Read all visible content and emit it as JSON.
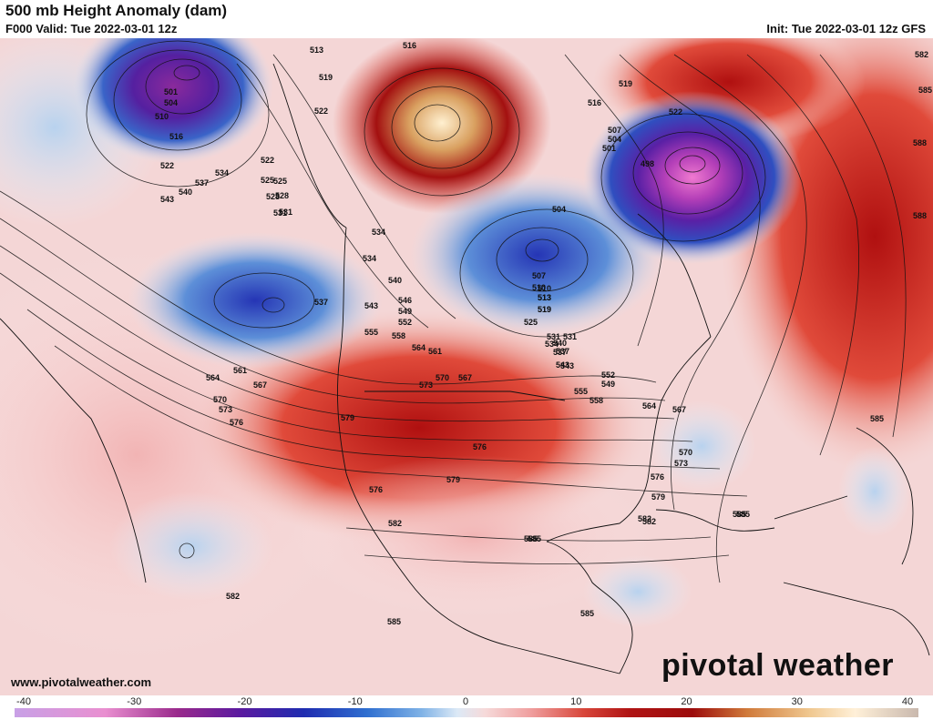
{
  "header": {
    "title": "500 mb Height Anomaly (dam)",
    "valid": "F000 Valid: Tue 2022-03-01 12z",
    "init": "Init: Tue 2022-03-01 12z GFS"
  },
  "footer": {
    "website": "www.pivotalweather.com",
    "brand": "pivotal weather"
  },
  "colorbar": {
    "ticks": [
      "-40",
      "-30",
      "-20",
      "-10",
      "0",
      "10",
      "20",
      "30",
      "40"
    ]
  },
  "contour_labels": [
    {
      "t": "513"
    },
    {
      "t": "516"
    },
    {
      "t": "522"
    },
    {
      "t": "525"
    },
    {
      "t": "528"
    },
    {
      "t": "531"
    },
    {
      "t": "534"
    },
    {
      "t": "519"
    },
    {
      "t": "501"
    },
    {
      "t": "504"
    },
    {
      "t": "510"
    },
    {
      "t": "516"
    },
    {
      "t": "522"
    },
    {
      "t": "534"
    },
    {
      "t": "537"
    },
    {
      "t": "540"
    },
    {
      "t": "543"
    },
    {
      "t": "522"
    },
    {
      "t": "525"
    },
    {
      "t": "528"
    },
    {
      "t": "531"
    },
    {
      "t": "534"
    },
    {
      "t": "540"
    },
    {
      "t": "537"
    },
    {
      "t": "543"
    },
    {
      "t": "546"
    },
    {
      "t": "549"
    },
    {
      "t": "552"
    },
    {
      "t": "555"
    },
    {
      "t": "558"
    },
    {
      "t": "564"
    },
    {
      "t": "561"
    },
    {
      "t": "570"
    },
    {
      "t": "567"
    },
    {
      "t": "573"
    },
    {
      "t": "564"
    },
    {
      "t": "561"
    },
    {
      "t": "567"
    },
    {
      "t": "570"
    },
    {
      "t": "573"
    },
    {
      "t": "576"
    },
    {
      "t": "579"
    },
    {
      "t": "576"
    },
    {
      "t": "579"
    },
    {
      "t": "576"
    },
    {
      "t": "582"
    },
    {
      "t": "582"
    },
    {
      "t": "585"
    },
    {
      "t": "585"
    },
    {
      "t": "585"
    },
    {
      "t": "543"
    },
    {
      "t": "540"
    },
    {
      "t": "537"
    },
    {
      "t": "531"
    },
    {
      "t": "519"
    },
    {
      "t": "513"
    },
    {
      "t": "510"
    },
    {
      "t": "504"
    },
    {
      "t": "507"
    },
    {
      "t": "510"
    },
    {
      "t": "513"
    },
    {
      "t": "519"
    },
    {
      "t": "525"
    },
    {
      "t": "531"
    },
    {
      "t": "534"
    },
    {
      "t": "537"
    },
    {
      "t": "543"
    },
    {
      "t": "549"
    },
    {
      "t": "552"
    },
    {
      "t": "555"
    },
    {
      "t": "558"
    },
    {
      "t": "564"
    },
    {
      "t": "567"
    },
    {
      "t": "570"
    },
    {
      "t": "573"
    },
    {
      "t": "576"
    },
    {
      "t": "579"
    },
    {
      "t": "582"
    },
    {
      "t": "585"
    },
    {
      "t": "498"
    },
    {
      "t": "501"
    },
    {
      "t": "504"
    },
    {
      "t": "507"
    },
    {
      "t": "516"
    },
    {
      "t": "519"
    },
    {
      "t": "522"
    },
    {
      "t": "582"
    },
    {
      "t": "585"
    },
    {
      "t": "588"
    },
    {
      "t": "588"
    },
    {
      "t": "585"
    },
    {
      "t": "585"
    },
    {
      "t": "582"
    },
    {
      "t": "585"
    }
  ]
}
